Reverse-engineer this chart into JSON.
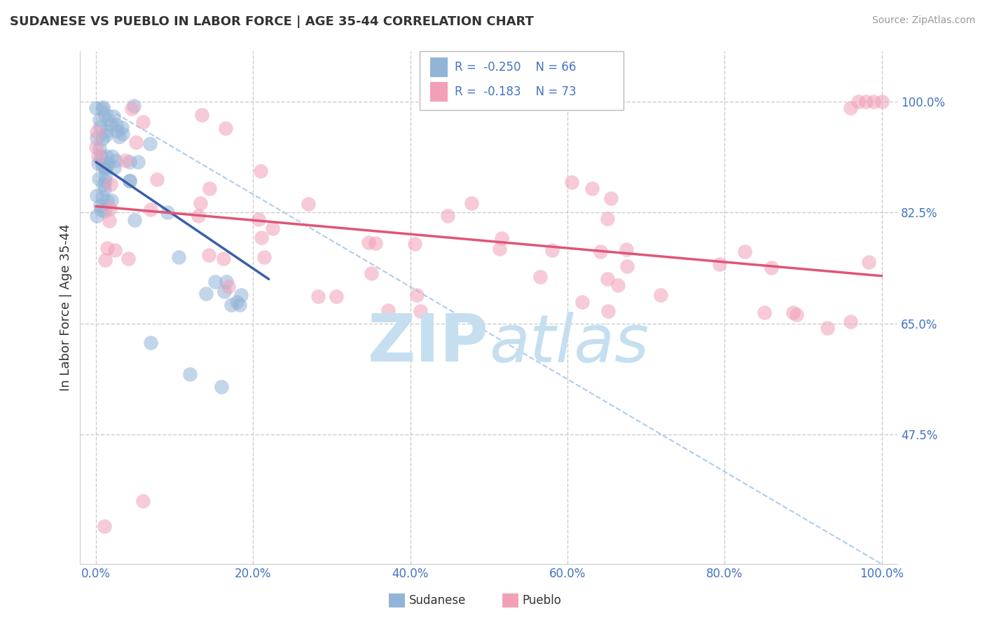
{
  "title": "SUDANESE VS PUEBLO IN LABOR FORCE | AGE 35-44 CORRELATION CHART",
  "source": "Source: ZipAtlas.com",
  "ylabel": "In Labor Force | Age 35-44",
  "xticklabels": [
    "0.0%",
    "20.0%",
    "40.0%",
    "60.0%",
    "80.0%",
    "100.0%"
  ],
  "yticklabels": [
    "47.5%",
    "65.0%",
    "82.5%",
    "100.0%"
  ],
  "xticks": [
    0,
    20,
    40,
    60,
    80,
    100
  ],
  "yticks": [
    47.5,
    65.0,
    82.5,
    100.0
  ],
  "xlim": [
    -2,
    102
  ],
  "ylim": [
    27,
    108
  ],
  "legend_label1": "Sudanese",
  "legend_label2": "Pueblo",
  "blue_color": "#92b4d7",
  "pink_color": "#f2a0b8",
  "blue_line_color": "#3a5fa8",
  "pink_line_color": "#e05575",
  "dash_line_color": "#a0c4e8",
  "watermark_zip": "ZIP",
  "watermark_atlas": "atlas",
  "watermark_color": "#c5dff0",
  "background_color": "#ffffff",
  "grid_color": "#cccccc",
  "title_color": "#333333",
  "tick_color": "#4472c4",
  "legend_text_color": "#4472c4",
  "blue_trend_x0": 0,
  "blue_trend_y0": 90.5,
  "blue_trend_x1": 22,
  "blue_trend_y1": 72.0,
  "pink_trend_x0": 0,
  "pink_trend_y0": 83.5,
  "pink_trend_x1": 100,
  "pink_trend_y1": 72.5,
  "dash_x0": 0,
  "dash_y0": 100,
  "dash_x1": 100,
  "dash_y1": 27
}
